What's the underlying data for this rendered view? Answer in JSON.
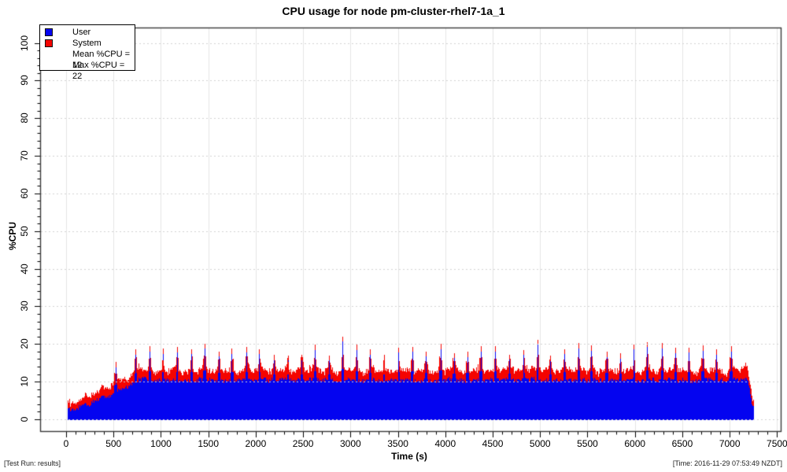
{
  "title": "CPU usage for node pm-cluster-rhel7-1a_1",
  "footer": {
    "left": "[Test Run: results]",
    "right": "[Time: 2016-11-29 07:53:49 NZDT]"
  },
  "legend": {
    "items": [
      {
        "label": "User"
      },
      {
        "label": "System"
      }
    ],
    "stats": [
      {
        "text": "Mean %CPU = 12"
      },
      {
        "text": "Max %CPU = 22"
      }
    ]
  },
  "chart_data": {
    "type": "area",
    "stacked": true,
    "title": "CPU usage for node pm-cluster-rhel7-1a_1",
    "xlabel": "Time (s)",
    "ylabel": "%CPU",
    "xlim": [
      0,
      7500
    ],
    "ylim": [
      0,
      100
    ],
    "x_major_ticks": [
      0,
      500,
      1000,
      1500,
      2000,
      2500,
      3000,
      3500,
      4000,
      4500,
      5000,
      5500,
      6000,
      6500,
      7000,
      7500
    ],
    "x_minor_step": 100,
    "y_major_ticks": [
      0,
      10,
      20,
      30,
      40,
      50,
      60,
      70,
      80,
      90,
      100
    ],
    "y_minor_step": 2,
    "grid": true,
    "grid_style": "dotted-lightgray",
    "legend_position": "top-left",
    "stats": {
      "mean_pct_cpu": 12,
      "max_pct_cpu": 22
    },
    "t_start": 24,
    "t_end": 7258,
    "sample_interval_s": 7.5,
    "series": [
      {
        "name": "User",
        "color": "#0404f0",
        "keyframes": [
          [
            24,
            2.2
          ],
          [
            150,
            3.3
          ],
          [
            300,
            4.7
          ],
          [
            450,
            6.3
          ],
          [
            600,
            8.0
          ],
          [
            700,
            9.4
          ],
          [
            760,
            10.4
          ],
          [
            7195,
            10.4
          ],
          [
            7212,
            8.2
          ],
          [
            7232,
            4.6
          ],
          [
            7258,
            3.9
          ]
        ],
        "noise": 0.55
      },
      {
        "name": "System",
        "color": "#f40400",
        "keyframes": [
          [
            24,
            1.7
          ],
          [
            300,
            2.2
          ],
          [
            760,
            2.4
          ],
          [
            7195,
            2.3
          ],
          [
            7258,
            1.5
          ]
        ],
        "noise": 0.55,
        "min": 0.6
      }
    ],
    "spikes": {
      "first_t": 735,
      "interval_s": 146,
      "last_t": 7100,
      "user_peak_range": [
        15.5,
        19.2
      ],
      "system_tip": 1.4,
      "base_widen_s": 36,
      "ramp_spike": {
        "t": 523,
        "user_peak": 13.8
      },
      "max_spike": {
        "t": 2927,
        "user_peak": 20.6,
        "total": 22
      },
      "tall_spike": {
        "t": 4971,
        "user_peak": 19.8
      },
      "end_bump": {
        "t_start": 7118,
        "t_end": 7190,
        "system_add": 0.9,
        "user_add": 0.4
      }
    }
  }
}
